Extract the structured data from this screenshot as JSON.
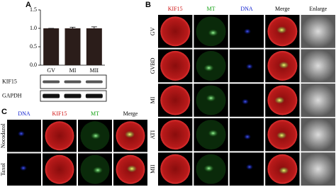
{
  "panel_labels": [
    "A",
    "B",
    "C"
  ],
  "chart_data": {
    "type": "bar",
    "categories": [
      "GV",
      "MI",
      "MII"
    ],
    "values": [
      1.0,
      1.0,
      1.0
    ],
    "errors": [
      0,
      0.03,
      0.04
    ],
    "color": "#2b1d1a",
    "ylim": [
      0,
      1.5
    ],
    "yticks": [
      {
        "value": 0,
        "label": "0.0"
      },
      {
        "value": 0.5,
        "label": "0.5"
      },
      {
        "value": 1,
        "label": "1.0"
      },
      {
        "value": 1.5,
        "label": "1.5"
      }
    ]
  },
  "blot": {
    "bands": [
      "KIF15",
      "GAPDH"
    ]
  },
  "panel_b": {
    "columns": [
      "KIF15",
      "MT",
      "DNA",
      "Merge",
      "Enlarge"
    ],
    "rows": [
      "GV",
      "GVBD",
      "MI",
      "ATI",
      "MII"
    ]
  },
  "panel_c": {
    "columns": [
      "DNA",
      "KIF15",
      "MT",
      "Merge"
    ],
    "rows": [
      "Nocodazol",
      "Taxol"
    ]
  }
}
